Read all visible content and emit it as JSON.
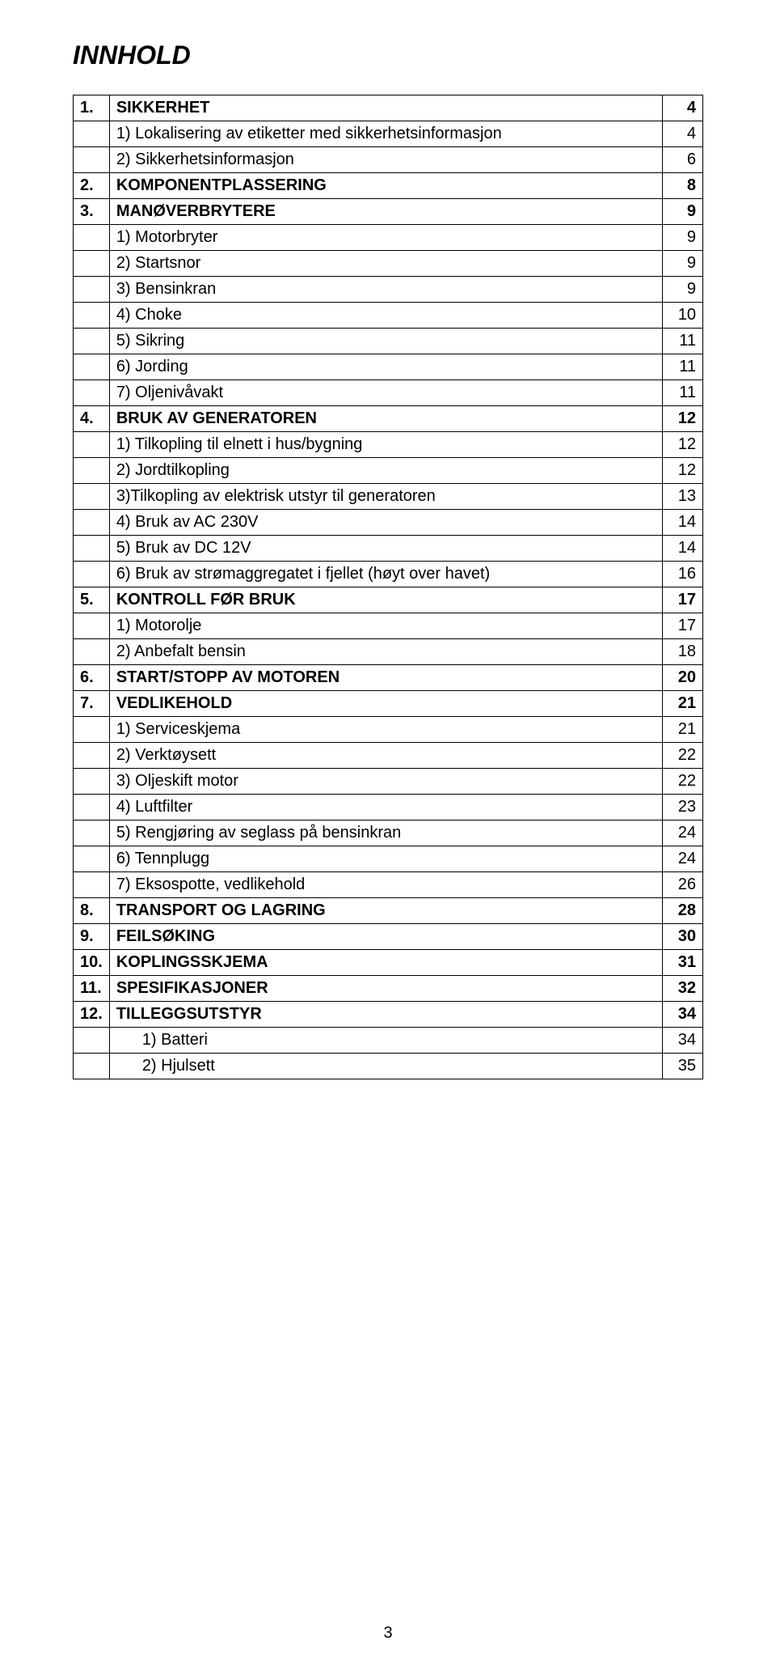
{
  "title": "INNHOLD",
  "rows": [
    {
      "a": "1.",
      "b": "SIKKERHET",
      "c": "4",
      "bold": true,
      "indent": false
    },
    {
      "a": "",
      "b": "1) Lokalisering av etiketter med sikkerhetsinformasjon",
      "c": "4",
      "bold": false,
      "indent": false
    },
    {
      "a": "",
      "b": "2) Sikkerhetsinformasjon",
      "c": "6",
      "bold": false,
      "indent": false
    },
    {
      "a": "2.",
      "b": "KOMPONENTPLASSERING",
      "c": "8",
      "bold": true,
      "indent": false
    },
    {
      "a": "3.",
      "b": "MANØVERBRYTERE",
      "c": "9",
      "bold": true,
      "indent": false
    },
    {
      "a": "",
      "b": "1) Motorbryter",
      "c": "9",
      "bold": false,
      "indent": false
    },
    {
      "a": "",
      "b": "2) Startsnor",
      "c": "9",
      "bold": false,
      "indent": false
    },
    {
      "a": "",
      "b": "3) Bensinkran",
      "c": "9",
      "bold": false,
      "indent": false
    },
    {
      "a": "",
      "b": "4) Choke",
      "c": "10",
      "bold": false,
      "indent": false
    },
    {
      "a": "",
      "b": "5) Sikring",
      "c": "11",
      "bold": false,
      "indent": false
    },
    {
      "a": "",
      "b": "6) Jording",
      "c": "11",
      "bold": false,
      "indent": false
    },
    {
      "a": "",
      "b": "7) Oljenivåvakt",
      "c": "11",
      "bold": false,
      "indent": false
    },
    {
      "a": "4.",
      "b": "BRUK AV GENERATOREN",
      "c": "12",
      "bold": true,
      "indent": false
    },
    {
      "a": "",
      "b": "1) Tilkopling til elnett i hus/bygning",
      "c": "12",
      "bold": false,
      "indent": false
    },
    {
      "a": "",
      "b": "2) Jordtilkopling",
      "c": "12",
      "bold": false,
      "indent": false
    },
    {
      "a": "",
      "b": "3)Tilkopling av elektrisk utstyr til generatoren",
      "c": "13",
      "bold": false,
      "indent": false
    },
    {
      "a": "",
      "b": "4) Bruk av AC 230V",
      "c": "14",
      "bold": false,
      "indent": false
    },
    {
      "a": "",
      "b": "5) Bruk av DC 12V",
      "c": "14",
      "bold": false,
      "indent": false
    },
    {
      "a": "",
      "b": "6) Bruk av strømaggregatet i fjellet (høyt over havet)",
      "c": "16",
      "bold": false,
      "indent": false
    },
    {
      "a": "5.",
      "b": "KONTROLL FØR BRUK",
      "c": "17",
      "bold": true,
      "indent": false
    },
    {
      "a": "",
      "b": "1) Motorolje",
      "c": "17",
      "bold": false,
      "indent": false
    },
    {
      "a": "",
      "b": "2) Anbefalt bensin",
      "c": "18",
      "bold": false,
      "indent": false
    },
    {
      "a": "6.",
      "b": "START/STOPP AV MOTOREN",
      "c": "20",
      "bold": true,
      "indent": false
    },
    {
      "a": "7.",
      "b": "VEDLIKEHOLD",
      "c": "21",
      "bold": true,
      "indent": false
    },
    {
      "a": "",
      "b": "1) Serviceskjema",
      "c": "21",
      "bold": false,
      "indent": false
    },
    {
      "a": "",
      "b": "2) Verktøysett",
      "c": "22",
      "bold": false,
      "indent": false
    },
    {
      "a": "",
      "b": "3) Oljeskift motor",
      "c": "22",
      "bold": false,
      "indent": false
    },
    {
      "a": "",
      "b": "4) Luftfilter",
      "c": "23",
      "bold": false,
      "indent": false
    },
    {
      "a": "",
      "b": "5) Rengjøring av seglass på bensinkran",
      "c": "24",
      "bold": false,
      "indent": false
    },
    {
      "a": "",
      "b": "6) Tennplugg",
      "c": "24",
      "bold": false,
      "indent": false
    },
    {
      "a": "",
      "b": "7) Eksospotte, vedlikehold",
      "c": "26",
      "bold": false,
      "indent": false
    },
    {
      "a": "8.",
      "b": "TRANSPORT OG LAGRING",
      "c": "28",
      "bold": true,
      "indent": false
    },
    {
      "a": "9.",
      "b": "FEILSØKING",
      "c": "30",
      "bold": true,
      "indent": false
    },
    {
      "a": "10.",
      "b": "KOPLINGSSKJEMA",
      "c": "31",
      "bold": true,
      "indent": false
    },
    {
      "a": "11.",
      "b": "SPESIFIKASJONER",
      "c": "32",
      "bold": true,
      "indent": false
    },
    {
      "a": "12.",
      "b": "TILLEGGSUTSTYR",
      "c": "34",
      "bold": true,
      "indent": false
    },
    {
      "a": "",
      "b": "1) Batteri",
      "c": "34",
      "bold": false,
      "indent": true
    },
    {
      "a": "",
      "b": "2) Hjulsett",
      "c": "35",
      "bold": false,
      "indent": true
    }
  ],
  "pageNumber": "3"
}
